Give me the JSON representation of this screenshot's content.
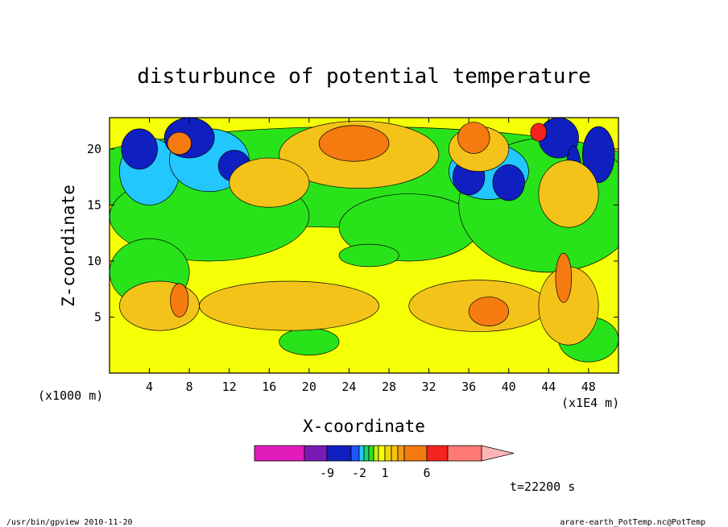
{
  "chart_data": {
    "type": "heatmap",
    "title": "disturbunce of potential temperature",
    "xlabel": "X-coordinate",
    "ylabel": "Z-coordinate",
    "x_unit_left": "(x1000 m)",
    "x_unit_right": "(x1E4 m)",
    "x_ticks": [
      "4",
      "8",
      "12",
      "16",
      "20",
      "24",
      "28",
      "32",
      "36",
      "40",
      "44",
      "48"
    ],
    "x_tick_values": [
      4,
      8,
      12,
      16,
      20,
      24,
      28,
      32,
      36,
      40,
      44,
      48
    ],
    "y_ticks": [
      "5",
      "10",
      "15",
      "20"
    ],
    "y_tick_values": [
      5,
      10,
      15,
      20
    ],
    "xlim": [
      0,
      51
    ],
    "ylim": [
      0,
      22.8
    ],
    "colorbar": {
      "labels": [
        "-9",
        "-2",
        "1",
        "6"
      ],
      "colors": [
        "#e21cbb",
        "#7a1ab6",
        "#0f1fc0",
        "#1f55ff",
        "#22c7ff",
        "#17d66e",
        "#29e31a",
        "#c8ee14",
        "#f5ff06",
        "#f4d510",
        "#f6c40f",
        "#f49b16",
        "#f57a10",
        "#f5221e",
        "#ff7a74",
        "#ffb5b8"
      ]
    },
    "time_label": "t=22200 s",
    "colors": {
      "background_field": "#f5ff06",
      "neg_strong": "#0f1fc0",
      "neg_mid": "#22c7ff",
      "neg_weak": "#29e31a",
      "pos_weak": "#f4c31a",
      "pos_mid": "#f57a10",
      "pos_strong": "#f5221e"
    }
  },
  "footer": {
    "left": "/usr/bin/gpview   2010-11-20",
    "right": "arare-earth_PotTemp.nc@PotTemp"
  }
}
